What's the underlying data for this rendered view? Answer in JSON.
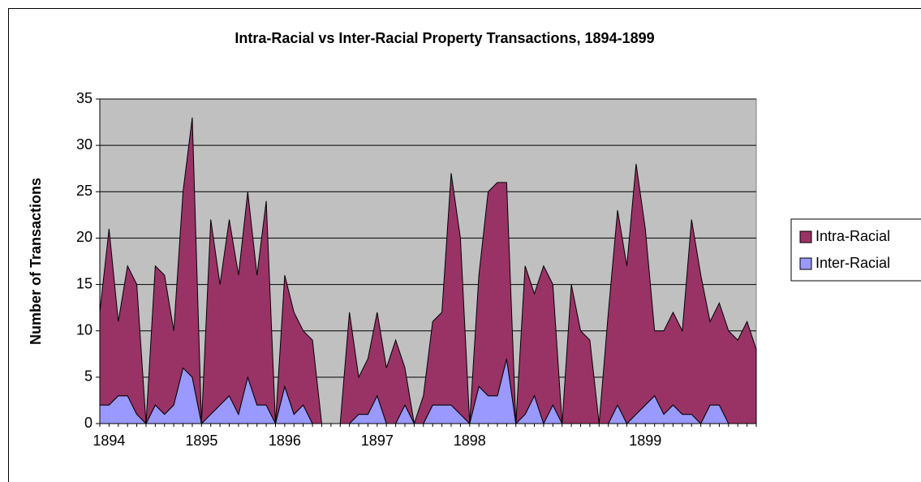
{
  "chart_data": {
    "type": "stacked_area",
    "title": "Intra-Racial vs Inter-Racial Property Transactions, 1894-1899",
    "y_label": "Number of Transactions",
    "categories": [
      null,
      "1894",
      null,
      null,
      null,
      null,
      null,
      null,
      null,
      null,
      null,
      "1895",
      null,
      null,
      null,
      null,
      null,
      null,
      null,
      null,
      "1896",
      null,
      null,
      null,
      null,
      null,
      null,
      null,
      null,
      null,
      "1897",
      null,
      null,
      null,
      null,
      null,
      null,
      null,
      null,
      null,
      "1898",
      null,
      null,
      null,
      null,
      null,
      null,
      null,
      null,
      null,
      null,
      null,
      null,
      null,
      null,
      null,
      null,
      null,
      null,
      "1899",
      null,
      null,
      null,
      null,
      null,
      null,
      null,
      null,
      null,
      null,
      null,
      null
    ],
    "series": [
      {
        "name": "Intra-Racial",
        "color": "#993366",
        "values": [
          10,
          19,
          8,
          14,
          14,
          0,
          15,
          15,
          8,
          19,
          28,
          0,
          21,
          13,
          19,
          15,
          20,
          14,
          22,
          0,
          12,
          11,
          8,
          9,
          0,
          0,
          0,
          12,
          4,
          6,
          9,
          6,
          9,
          4,
          0,
          3,
          9,
          10,
          25,
          19,
          0,
          12,
          22,
          23,
          19,
          0,
          16,
          11,
          17,
          13,
          0,
          15,
          10,
          9,
          0,
          12,
          21,
          17,
          27,
          19,
          7,
          9,
          10,
          9,
          21,
          16,
          9,
          11,
          10,
          9,
          11,
          8
        ]
      },
      {
        "name": "Inter-Racial",
        "color": "#9999FF",
        "values": [
          2,
          2,
          3,
          3,
          1,
          0,
          2,
          1,
          2,
          6,
          5,
          0,
          1,
          2,
          3,
          1,
          5,
          2,
          2,
          0,
          4,
          1,
          2,
          0,
          0,
          0,
          0,
          0,
          1,
          1,
          3,
          0,
          0,
          2,
          0,
          0,
          2,
          2,
          2,
          1,
          0,
          4,
          3,
          3,
          7,
          0,
          1,
          3,
          0,
          2,
          0,
          0,
          0,
          0,
          0,
          0,
          2,
          0,
          1,
          2,
          3,
          1,
          2,
          1,
          1,
          0,
          2,
          2,
          0,
          0,
          0,
          0
        ]
      }
    ],
    "ylim": [
      0,
      35
    ],
    "yticks": [
      0,
      5,
      10,
      15,
      20,
      25,
      30,
      35
    ],
    "grid": true,
    "stacked": true,
    "plot_background": "#C0C0C0",
    "legend": "right"
  }
}
